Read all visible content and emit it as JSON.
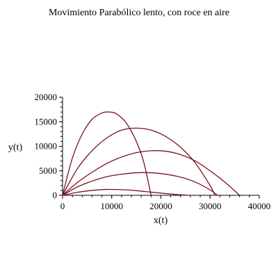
{
  "chart_data": {
    "type": "line",
    "title": "Movimiento Parabólico lento, con roce en aire",
    "xlabel": "x(t)",
    "ylabel": "y(t)",
    "xlim": [
      0,
      40000
    ],
    "ylim": [
      0,
      20000
    ],
    "xticks": [
      "0",
      "10000",
      "20000",
      "30000",
      "40000"
    ],
    "yticks": [
      "0",
      "5000",
      "10000",
      "15000",
      "20000"
    ],
    "grid": false,
    "line_color": "#7a1020",
    "series": [
      {
        "x": [
          0,
          3000,
          6000,
          9000,
          12000,
          15000,
          18000,
          21000,
          24000,
          27000,
          30000,
          33000,
          36000
        ],
        "y": [
          0,
          2600,
          4700,
          6500,
          7800,
          8700,
          9100,
          9000,
          8300,
          7000,
          5000,
          2700,
          0
        ]
      },
      {
        "x": [
          0,
          3000,
          6000,
          9000,
          12000,
          15000,
          18000,
          21000,
          24000,
          27000,
          30000,
          31500
        ],
        "y": [
          0,
          1700,
          2900,
          3800,
          4300,
          4600,
          4600,
          4300,
          3700,
          2700,
          1100,
          0
        ]
      },
      {
        "x": [
          0,
          3000,
          6000,
          9000,
          12000,
          15000,
          18000,
          21000,
          24000,
          27000,
          30000,
          31000
        ],
        "y": [
          0,
          5400,
          9100,
          11700,
          13300,
          13700,
          13300,
          12000,
          9800,
          6600,
          2000,
          0
        ]
      },
      {
        "x": [
          0,
          2000,
          4000,
          6000,
          8000,
          9500,
          11000,
          13000,
          15000,
          16500,
          18000
        ],
        "y": [
          0,
          7600,
          12500,
          15500,
          16800,
          17000,
          16600,
          14700,
          11000,
          6800,
          0
        ]
      },
      {
        "x": [
          0,
          3000,
          6000,
          9000,
          12000,
          15000,
          18000,
          21000,
          24000,
          26000
        ],
        "y": [
          0,
          600,
          1000,
          1200,
          1150,
          950,
          650,
          350,
          100,
          0
        ]
      }
    ]
  }
}
